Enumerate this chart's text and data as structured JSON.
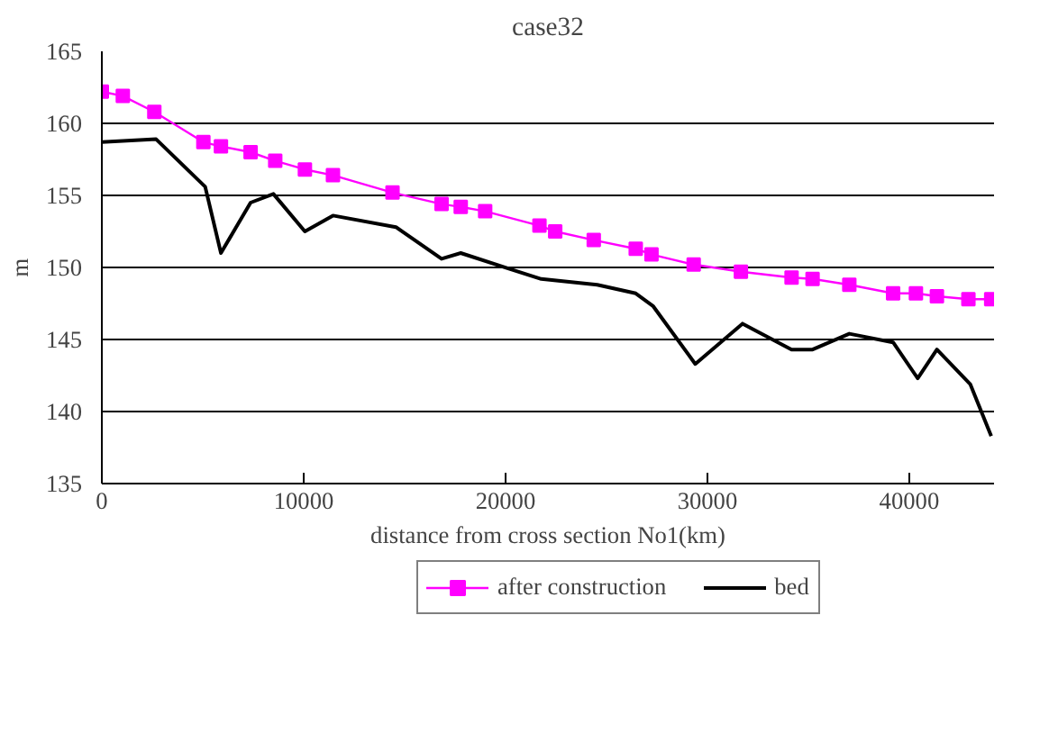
{
  "chart_data": {
    "type": "line",
    "title": "case32",
    "xlabel": "distance from cross section No1(km)",
    "ylabel": "m",
    "xlim": [
      0,
      44200
    ],
    "ylim": [
      135,
      165
    ],
    "xticks": [
      0,
      10000,
      20000,
      30000,
      40000
    ],
    "yticks": [
      135,
      140,
      145,
      150,
      155,
      160,
      165
    ],
    "grid": "y",
    "legend": "bottom",
    "line_style": "solid",
    "series": [
      {
        "name": "after construction",
        "color": "#ff00ff",
        "marker": "square",
        "x": [
          0,
          1040,
          2600,
          5030,
          5900,
          7370,
          8590,
          10060,
          11450,
          14400,
          16830,
          17780,
          18990,
          21680,
          22460,
          24370,
          26450,
          27230,
          29320,
          31660,
          34170,
          35210,
          37030,
          39200,
          40330,
          41370,
          42930,
          44060
        ],
        "values": [
          162.2,
          161.9,
          160.8,
          158.7,
          158.4,
          158.0,
          157.4,
          156.8,
          156.4,
          155.2,
          154.4,
          154.2,
          153.9,
          152.9,
          152.5,
          151.9,
          151.3,
          150.9,
          150.2,
          149.7,
          149.3,
          149.2,
          148.8,
          148.2,
          148.2,
          148.0,
          147.8,
          147.8
        ]
      },
      {
        "name": "bed",
        "color": "#000000",
        "marker": "none",
        "x": [
          0,
          2690,
          5120,
          5900,
          7370,
          8500,
          10060,
          11450,
          14570,
          16830,
          17780,
          20200,
          21770,
          24540,
          26450,
          27320,
          29400,
          31740,
          34170,
          35210,
          37030,
          39200,
          40420,
          41370,
          43020,
          44060
        ],
        "values": [
          158.7,
          158.9,
          155.6,
          151.0,
          154.5,
          155.1,
          152.5,
          153.6,
          152.8,
          150.6,
          151.0,
          149.9,
          149.2,
          148.8,
          148.2,
          147.3,
          143.3,
          146.1,
          144.3,
          144.3,
          145.4,
          144.8,
          142.3,
          144.3,
          141.9,
          138.3
        ]
      }
    ]
  }
}
